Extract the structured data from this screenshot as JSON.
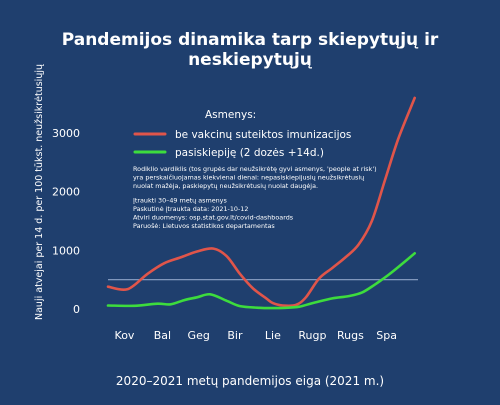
{
  "chart_data": {
    "type": "line",
    "title": "Pandemijos dinamika tarp skiepytųjų ir neskiepytųjų",
    "xlabel": "2020–2021 metų pandemijos eiga (2021 m.)",
    "ylabel": "Nauji atvejai per 14 d. per 100 tūkst. neužsikrėtusiųjų",
    "categories": [
      "Kov",
      "Bal",
      "Geg",
      "Bir",
      "Lie",
      "Rugp",
      "Rugs",
      "Spa"
    ],
    "yticks": [
      0,
      1000,
      2000,
      3000
    ],
    "ylim": [
      0,
      3650
    ],
    "xlim": [
      0,
      9.4
    ],
    "reference_line": 500,
    "legend_title": "Asmenys:",
    "legend_position": "top-center",
    "series": [
      {
        "name": "be vakcinų suteiktos imunizacijos",
        "color": "#e0554a",
        "x": [
          0,
          0.6,
          1.2,
          1.7,
          2.2,
          2.7,
          3.2,
          3.6,
          4.0,
          4.4,
          4.8,
          5.0,
          5.3,
          5.7,
          6.0,
          6.4,
          6.8,
          7.2,
          7.6,
          8.0,
          8.4,
          8.8,
          9.3
        ],
        "values": [
          380,
          340,
          600,
          780,
          880,
          980,
          1030,
          900,
          600,
          350,
          180,
          100,
          60,
          70,
          200,
          520,
          700,
          880,
          1100,
          1500,
          2200,
          2900,
          3600
        ]
      },
      {
        "name": "pasiskiepiję (2 dozės +14d.)",
        "color": "#3ddc3d",
        "x": [
          0,
          0.8,
          1.5,
          1.9,
          2.3,
          2.7,
          3.1,
          3.6,
          4.0,
          4.6,
          5.0,
          5.4,
          5.8,
          6.2,
          6.8,
          7.3,
          7.7,
          8.1,
          8.5,
          8.9,
          9.3
        ],
        "values": [
          60,
          55,
          90,
          80,
          150,
          200,
          250,
          140,
          50,
          20,
          15,
          20,
          40,
          100,
          180,
          220,
          280,
          420,
          580,
          760,
          950
        ]
      }
    ],
    "notes": [
      "Rodiklio vardiklis (tos grupės dar neužsikrėtę gyvi asmenys, 'people at risk')",
      "yra perskaičiuojamas kiekvienai dienai: nepasiskiepijusių neužsikrėtusių",
      "nuolat mažėja, paskiepytų neužsikrėtusių nuolat daugėja.",
      "",
      "Įtraukti 30–49 metų asmenys",
      "Paskutinė įtraukta data: 2021-10-12",
      "Atviri duomenys: osp.stat.gov.lt/covid-dashboards",
      "Paruošė: Lietuvos statistikos departamentas"
    ],
    "grid": false
  }
}
